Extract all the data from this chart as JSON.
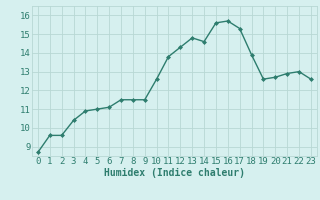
{
  "x": [
    0,
    1,
    2,
    3,
    4,
    5,
    6,
    7,
    8,
    9,
    10,
    11,
    12,
    13,
    14,
    15,
    16,
    17,
    18,
    19,
    20,
    21,
    22,
    23
  ],
  "y": [
    8.7,
    9.6,
    9.6,
    10.4,
    10.9,
    11.0,
    11.1,
    11.5,
    11.5,
    11.5,
    12.6,
    13.8,
    14.3,
    14.8,
    14.6,
    15.6,
    15.7,
    15.3,
    13.9,
    12.6,
    12.7,
    12.9,
    13.0,
    12.6
  ],
  "line_color": "#2e7d6e",
  "marker": "D",
  "markersize": 2.0,
  "linewidth": 1.0,
  "bg_color": "#d6f0ef",
  "grid_color": "#b8d8d4",
  "xlabel": "Humidex (Indice chaleur)",
  "xlim": [
    -0.5,
    23.5
  ],
  "ylim": [
    8.5,
    16.5
  ],
  "yticks": [
    9,
    10,
    11,
    12,
    13,
    14,
    15,
    16
  ],
  "xticks": [
    0,
    1,
    2,
    3,
    4,
    5,
    6,
    7,
    8,
    9,
    10,
    11,
    12,
    13,
    14,
    15,
    16,
    17,
    18,
    19,
    20,
    21,
    22,
    23
  ],
  "xlabel_fontsize": 7,
  "tick_fontsize": 6.5,
  "tick_color": "#2e7d6e",
  "figwidth": 3.2,
  "figheight": 2.0,
  "dpi": 100
}
